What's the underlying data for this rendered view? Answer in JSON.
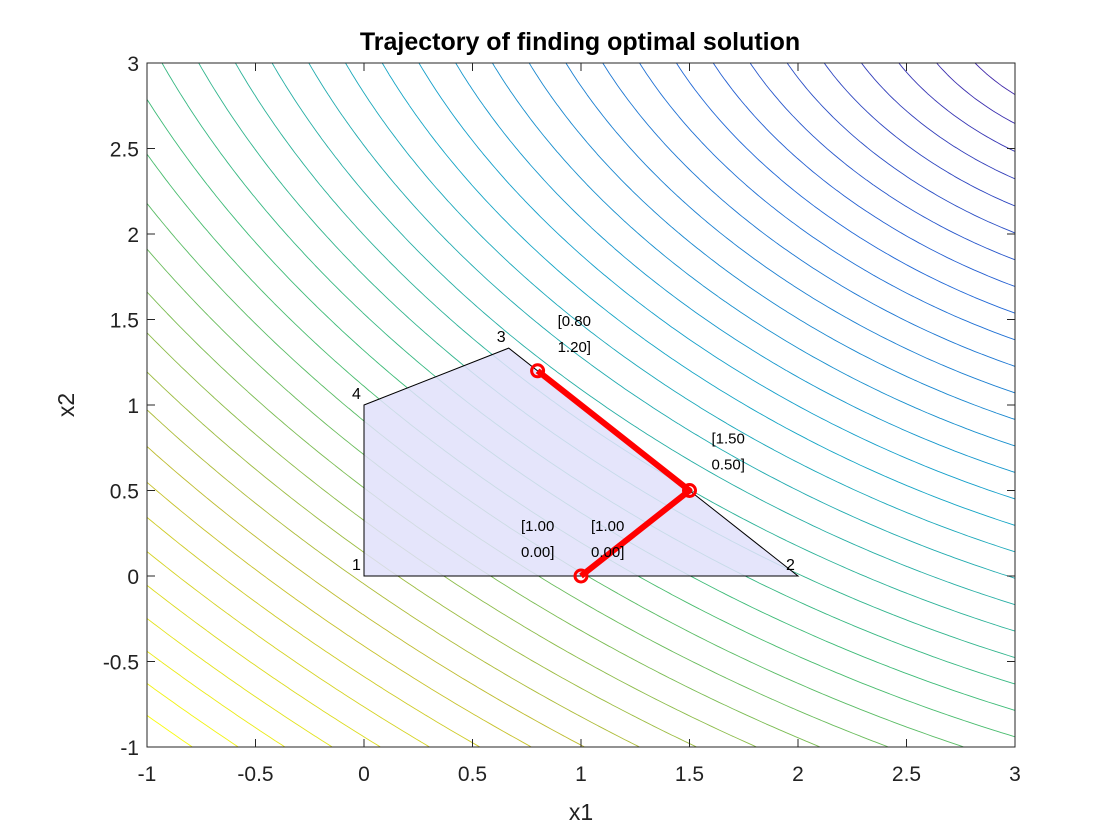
{
  "chart_data": {
    "type": "contour",
    "title": "Trajectory of finding optimal solution",
    "xlabel": "x1",
    "ylabel": "x2",
    "xlim": [
      -1,
      3
    ],
    "ylim": [
      -1,
      3
    ],
    "xticks": [
      -1,
      -0.5,
      0,
      0.5,
      1,
      1.5,
      2,
      2.5,
      3
    ],
    "yticks": [
      -1,
      -0.5,
      0,
      0.5,
      1,
      1.5,
      2,
      2.5,
      3
    ],
    "xtick_labels": [
      "-1",
      "-0.5",
      "0",
      "0.5",
      "1",
      "1.5",
      "2",
      "2.5",
      "3"
    ],
    "ytick_labels": [
      "-1",
      "-0.5",
      "0",
      "0.5",
      "1",
      "1.5",
      "2",
      "2.5",
      "3"
    ],
    "grid": false,
    "feasible_region": {
      "vertices": [
        {
          "label": "1",
          "x": 0,
          "y": 0
        },
        {
          "label": "2",
          "x": 2,
          "y": 0
        },
        {
          "label": "3",
          "x": 0.667,
          "y": 1.333
        },
        {
          "label": "4",
          "x": 0,
          "y": 1
        }
      ],
      "fill_color": "#e0e0fa",
      "edge_color": "#000000"
    },
    "trajectory": {
      "color": "#ff0000",
      "points": [
        {
          "x": 1.0,
          "y": 0.0
        },
        {
          "x": 1.5,
          "y": 0.5
        },
        {
          "x": 0.8,
          "y": 1.2
        }
      ]
    },
    "annotations": [
      {
        "x": 0.8,
        "y": 1.2,
        "line1": "[0.80",
        "line2": "1.20]"
      },
      {
        "x": 1.5,
        "y": 0.5,
        "line1": "[1.50",
        "line2": "0.50]"
      },
      {
        "x": 1.0,
        "y": 0.0,
        "line1": "[1.00",
        "line2": "0.00]"
      },
      {
        "x": 1.0,
        "y": 0.0,
        "line1": "[1.00",
        "line2": "0.00]"
      }
    ],
    "contour": {
      "levels": 40,
      "colormap": [
        "#3e26a8",
        "#2166d6",
        "#13a4c9",
        "#3fbc73",
        "#c1bc2e",
        "#f9fb0e"
      ]
    }
  }
}
